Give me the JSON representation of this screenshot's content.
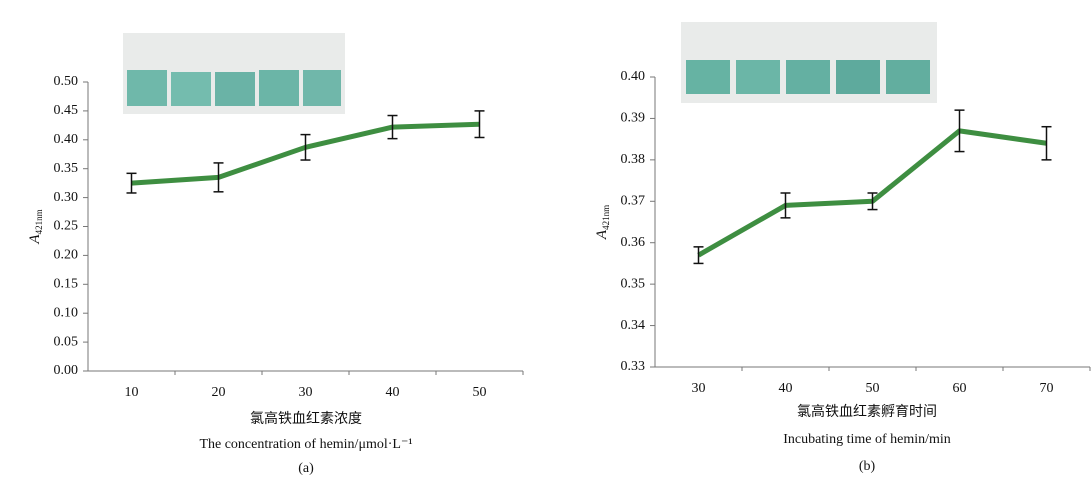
{
  "chart_data": [
    {
      "type": "line",
      "panel": "(a)",
      "y_label": "A",
      "y_label_sub": "421nm",
      "x_label_cn": "氯高铁血红素浓度",
      "x_label_en": "The concentration of hemin/μmol·L⁻¹",
      "categories": [
        "10",
        "20",
        "30",
        "40",
        "50"
      ],
      "series": [
        {
          "color": "#3e8e41",
          "values": [
            0.325,
            0.335,
            0.387,
            0.422,
            0.427
          ],
          "errors": [
            0.017,
            0.025,
            0.022,
            0.02,
            0.023
          ]
        }
      ],
      "ylim": [
        0,
        0.5
      ],
      "yticks": [
        {
          "value": 0,
          "label": "0.00"
        },
        0.05,
        {
          "value": 0.1,
          "label": "0.10"
        },
        0.15,
        {
          "value": 0.2,
          "label": "0.20"
        },
        0.25,
        {
          "value": 0.3,
          "label": "0.30"
        },
        0.35,
        {
          "value": 0.4,
          "label": "0.40"
        },
        0.45,
        {
          "value": 0.5,
          "label": "0.50"
        }
      ]
    },
    {
      "type": "line",
      "panel": "(b)",
      "y_label": "A",
      "y_label_sub": "421nm",
      "x_label_cn": "氯高铁血红素孵育时间",
      "x_label_en": "Incubating time of hemin/min",
      "categories": [
        "30",
        "40",
        "50",
        "60",
        "70"
      ],
      "series": [
        {
          "color": "#3e8e41",
          "values": [
            0.357,
            0.369,
            0.37,
            0.387,
            0.384
          ],
          "errors": [
            0.002,
            0.003,
            0.002,
            0.005,
            0.004
          ]
        }
      ],
      "ylim": [
        0.33,
        0.4
      ],
      "yticks": [
        0.33,
        0.34,
        0.35,
        0.36,
        0.37,
        0.38,
        0.39,
        {
          "value": 0.4,
          "label": "0.40"
        }
      ]
    }
  ]
}
